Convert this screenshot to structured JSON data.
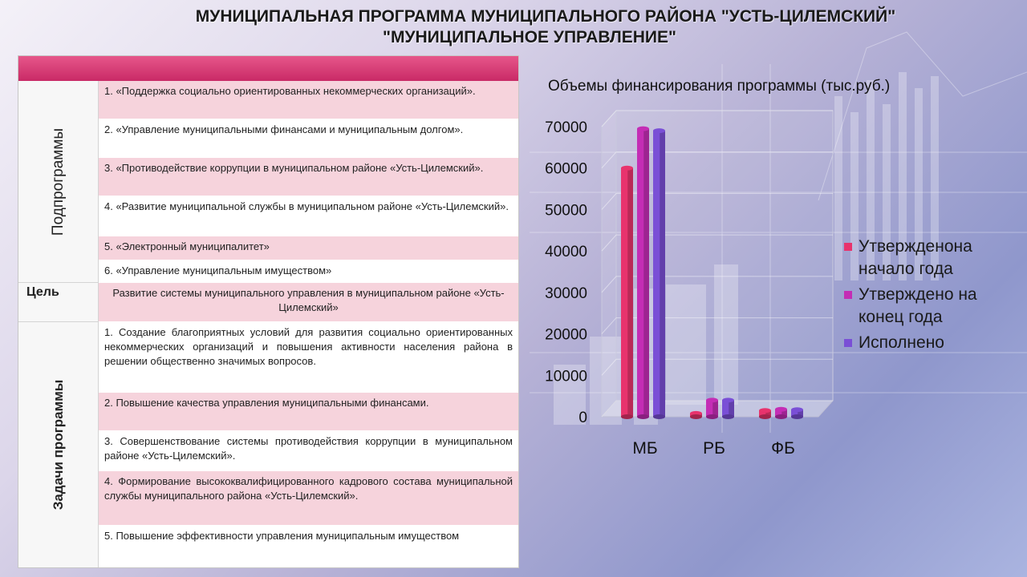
{
  "title": {
    "line1": "МУНИЦИПАЛЬНАЯ ПРОГРАММА МУНИЦИПАЛЬНОГО РАЙОНА \"УСТЬ-ЦИЛЕМСКИЙ\"",
    "line2": "\"МУНИЦИПАЛЬНОЕ УПРАВЛЕНИЕ\""
  },
  "table": {
    "subprograms_label": "Подпрограммы",
    "subprograms": [
      "1. «Поддержка социально ориентированных некоммерческих организаций».",
      "2. «Управление муниципальными финансами и муниципальным долгом».",
      "3. «Противодействие коррупции в муниципальном районе «Усть-Цилемский».",
      "4. «Развитие муниципальной службы в муниципальном районе «Усть-Цилемский».",
      "5. «Электронный муниципалитет»",
      "6. «Управление муниципальным имуществом»"
    ],
    "goal_label": "Цель",
    "goal_text": "Развитие системы муниципального управления в муниципальном районе «Усть-Цилемский»",
    "tasks_label": "Задачи программы",
    "tasks": [
      "1. Создание благоприятных условий для развития социально ориентированных некоммерческих организаций и повышения активности населения района в решении общественно значимых вопросов.",
      "2. Повышение качества управления муниципальными финансами.",
      "3. Совершенствование системы противодействия коррупции в муниципальном районе «Усть-Цилемский».",
      "4. Формирование высококвалифицированного кадрового состава муниципальной службы муниципального района «Усть-Цилемский».",
      "5. Повышение эффективности управления муниципальным имуществом"
    ]
  },
  "chart_data": {
    "type": "bar",
    "title": "Объемы финансирования  программы (тыс.руб.)",
    "categories": [
      "МБ",
      "РБ",
      "ФБ"
    ],
    "series": [
      {
        "name": "Утвержденона начало года",
        "name_lines": [
          "Утвержденона",
          "начало года"
        ],
        "color": "#e8336d",
        "values": [
          60000,
          800,
          1500
        ]
      },
      {
        "name": "Утверждено на конец года",
        "name_lines": [
          "Утверждено на",
          "конец года"
        ],
        "color": "#c42db5",
        "values": [
          69500,
          4000,
          1800
        ]
      },
      {
        "name": "Исполнено",
        "name_lines": [
          "Исполнено"
        ],
        "color": "#7a4fd6",
        "values": [
          69000,
          4000,
          1700
        ]
      }
    ],
    "yticks": [
      0,
      10000,
      20000,
      30000,
      40000,
      50000,
      60000,
      70000
    ],
    "ylim": [
      0,
      70000
    ],
    "legend_position": "right"
  }
}
